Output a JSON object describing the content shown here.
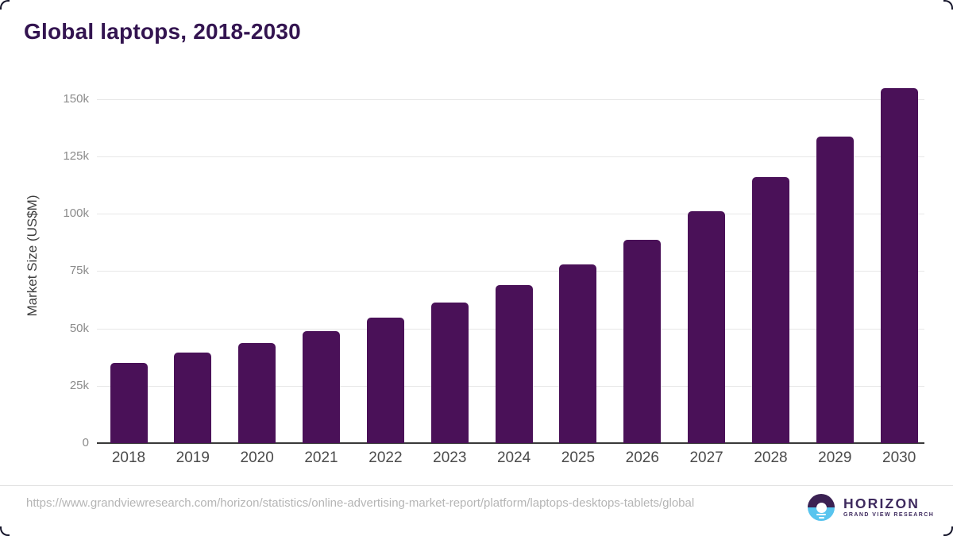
{
  "header": {
    "title": "Global laptops, 2018-2030"
  },
  "chart_data": {
    "type": "bar",
    "title": "Global laptops, 2018-2030",
    "ylabel": "Market Size (US$M)",
    "xlabel": "",
    "categories": [
      "2018",
      "2019",
      "2020",
      "2021",
      "2022",
      "2023",
      "2024",
      "2025",
      "2026",
      "2027",
      "2028",
      "2029",
      "2030"
    ],
    "values": [
      35000,
      39400,
      43600,
      48900,
      54800,
      61300,
      68900,
      77900,
      88800,
      101200,
      115900,
      133800,
      154900
    ],
    "unit": "US$M",
    "ylim": [
      0,
      162000
    ],
    "yticks": [
      {
        "value": 0,
        "label": "0"
      },
      {
        "value": 25000,
        "label": "25k"
      },
      {
        "value": 50000,
        "label": "50k"
      },
      {
        "value": 75000,
        "label": "75k"
      },
      {
        "value": 100000,
        "label": "100k"
      },
      {
        "value": 125000,
        "label": "125k"
      },
      {
        "value": 150000,
        "label": "150k"
      }
    ],
    "grid": true,
    "legend": false,
    "bar_color": "#4a1158"
  },
  "footer": {
    "source_url": "https://www.grandviewresearch.com/horizon/statistics/online-advertising-market-report/platform/laptops-desktops-tablets/global",
    "logo": {
      "brand": "HORIZON",
      "tagline": "GRAND VIEW RESEARCH"
    }
  },
  "colors": {
    "bar": "#4a1158",
    "title_text": "#331450",
    "logo_purple": "#3e2a5e",
    "logo_circle_top": "#3b2153",
    "logo_circle_bottom": "#58c4ee",
    "gridline": "#e7e7e7",
    "axis_line": "#3a3a3a",
    "y_tick_text": "#8b8b8b",
    "x_label_text": "#4b4b4b",
    "url_text": "#b5b5b5"
  }
}
